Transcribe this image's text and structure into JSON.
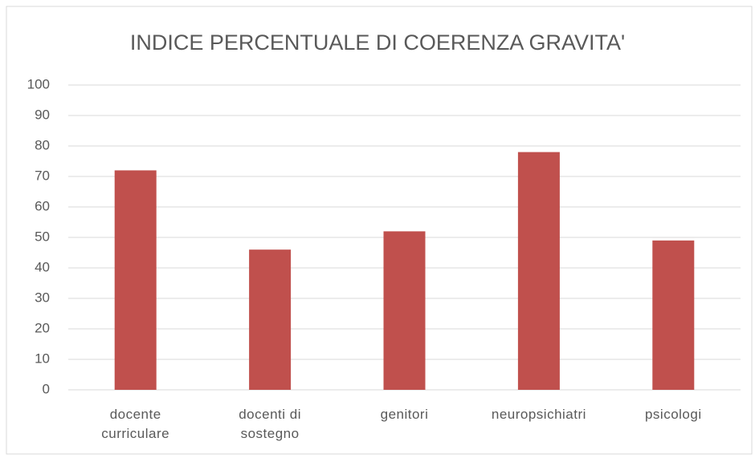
{
  "chart_data": {
    "type": "bar",
    "title": "INDICE PERCENTUALE DI COERENZA GRAVITA'",
    "categories": [
      "docente curriculare",
      "docenti di sostegno",
      "genitori",
      "neuropsichiatri",
      "psicologi"
    ],
    "values": [
      72,
      46,
      52,
      78,
      49
    ],
    "color": "#c0504d",
    "ylim": [
      0,
      100
    ],
    "yticks": [
      0,
      10,
      20,
      30,
      40,
      50,
      60,
      70,
      80,
      90,
      100
    ],
    "grid": true
  }
}
